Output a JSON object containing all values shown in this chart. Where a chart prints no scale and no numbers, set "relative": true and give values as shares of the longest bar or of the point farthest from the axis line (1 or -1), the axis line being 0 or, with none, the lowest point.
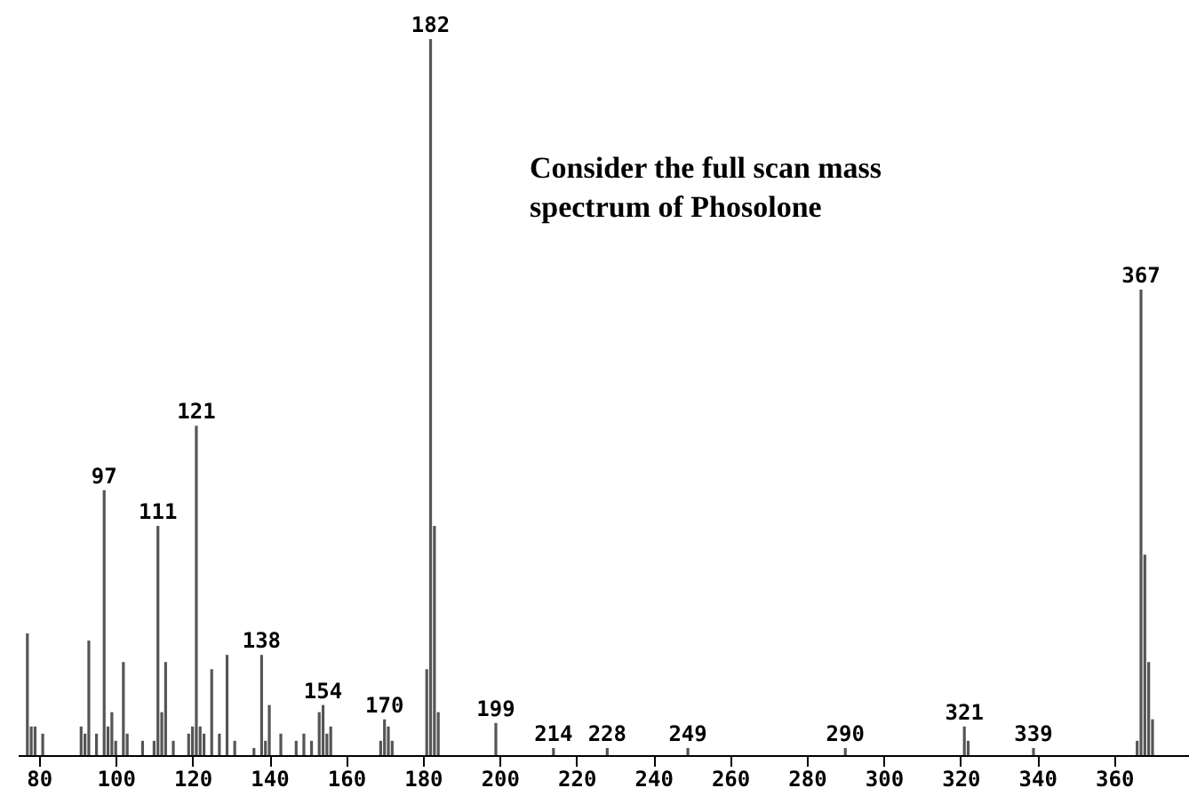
{
  "chart_data": {
    "type": "bar",
    "relative": true,
    "title": "Consider the full scan mass spectrum of Phosolone",
    "x": [
      77,
      78,
      79,
      81,
      91,
      92,
      93,
      95,
      97,
      98,
      99,
      100,
      102,
      103,
      107,
      110,
      111,
      112,
      113,
      115,
      119,
      120,
      121,
      122,
      123,
      125,
      127,
      129,
      131,
      136,
      138,
      139,
      140,
      143,
      147,
      149,
      151,
      153,
      154,
      155,
      156,
      169,
      170,
      171,
      172,
      181,
      182,
      183,
      184,
      199,
      214,
      228,
      249,
      290,
      321,
      322,
      339,
      366,
      367,
      368,
      369,
      370
    ],
    "values": [
      0.17,
      0.04,
      0.04,
      0.03,
      0.04,
      0.03,
      0.16,
      0.03,
      0.37,
      0.04,
      0.06,
      0.02,
      0.13,
      0.03,
      0.02,
      0.02,
      0.32,
      0.06,
      0.13,
      0.02,
      0.03,
      0.04,
      0.46,
      0.04,
      0.03,
      0.12,
      0.03,
      0.14,
      0.02,
      0.01,
      0.14,
      0.02,
      0.07,
      0.03,
      0.02,
      0.03,
      0.02,
      0.06,
      0.07,
      0.03,
      0.04,
      0.02,
      0.05,
      0.04,
      0.02,
      0.12,
      1,
      0.32,
      0.06,
      0.045,
      0.01,
      0.01,
      0.01,
      0.01,
      0.04,
      0.02,
      0.01,
      0.02,
      0.65,
      0.28,
      0.13,
      0.05
    ],
    "color": "#555555",
    "xlim": [
      74.5,
      379.5
    ],
    "xticks": [
      80,
      100,
      120,
      140,
      160,
      180,
      200,
      220,
      240,
      260,
      280,
      300,
      320,
      340,
      360
    ],
    "annotations": [
      {
        "text": "97",
        "x": 97,
        "y": 0.37
      },
      {
        "text": "111",
        "x": 111,
        "y": 0.32
      },
      {
        "text": "121",
        "x": 121,
        "y": 0.46
      },
      {
        "text": "138",
        "x": 138,
        "y": 0.14
      },
      {
        "text": "154",
        "x": 154,
        "y": 0.07
      },
      {
        "text": "170",
        "x": 170,
        "y": 0.05
      },
      {
        "text": "182",
        "x": 182,
        "y": 1
      },
      {
        "text": "199",
        "x": 199,
        "y": 0.045
      },
      {
        "text": "214",
        "x": 214,
        "y": 0.01
      },
      {
        "text": "228",
        "x": 228,
        "y": 0.01
      },
      {
        "text": "249",
        "x": 249,
        "y": 0.01
      },
      {
        "text": "290",
        "x": 290,
        "y": 0.01
      },
      {
        "text": "321",
        "x": 321,
        "y": 0.04
      },
      {
        "text": "339",
        "x": 339,
        "y": 0.01
      },
      {
        "text": "367",
        "x": 367,
        "y": 0.65
      }
    ]
  }
}
